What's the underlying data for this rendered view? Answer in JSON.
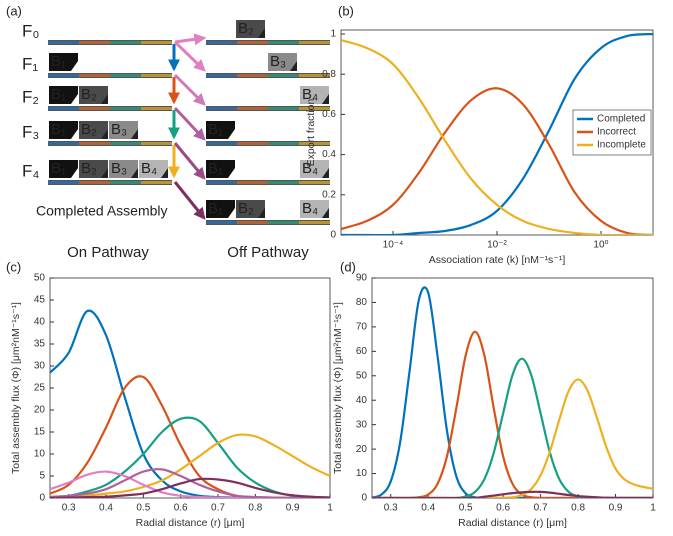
{
  "panel_labels": [
    "(a)",
    "(b)",
    "(c)",
    "(d)"
  ],
  "diagram": {
    "on_pathway": [
      {
        "label": "F₀",
        "blocks": []
      },
      {
        "label": "F₁",
        "blocks": [
          "B₁"
        ]
      },
      {
        "label": "F₂",
        "blocks": [
          "B₁",
          "B₂"
        ]
      },
      {
        "label": "F₃",
        "blocks": [
          "B₁",
          "B₂",
          "B₃"
        ]
      },
      {
        "label": "F₄",
        "blocks": [
          "B₁",
          "B₂",
          "B₃",
          "B₄"
        ]
      }
    ],
    "off_pathway": [
      [
        "B₂"
      ],
      [
        "B₃"
      ],
      [
        "B₄"
      ],
      [
        "B₁"
      ],
      [
        "B₁",
        "B₄"
      ],
      [
        "B₁",
        "B₂",
        "B₄"
      ]
    ],
    "completed_label": "Completed Assembly",
    "on_label": "On Pathway",
    "off_label": "Off Pathway"
  },
  "chart_data": [
    {
      "type": "line",
      "xscale": "log",
      "xlabel": "Association rate (k) [nM⁻¹s⁻¹]",
      "ylabel": "Export fraction",
      "x": [
        1e-05,
        3.16e-05,
        0.0001,
        0.000316,
        0.001,
        0.00316,
        0.01,
        0.0316,
        0.1,
        0.316,
        1,
        3.16,
        10
      ],
      "xlim": [
        1e-05,
        10
      ],
      "xticks": [
        {
          "value": 0.0001,
          "label": "10⁻⁴"
        },
        {
          "value": 0.01,
          "label": "10⁻²"
        },
        {
          "value": 1,
          "label": "10⁰"
        }
      ],
      "ylim": [
        0,
        1.02
      ],
      "yticks": [
        0,
        0.2,
        0.4,
        0.6,
        0.8,
        1
      ],
      "legend": "right",
      "series": [
        {
          "name": "Completed",
          "color": "#0072BD",
          "values": [
            0,
            0,
            0,
            0.01,
            0.02,
            0.05,
            0.12,
            0.28,
            0.52,
            0.78,
            0.93,
            0.99,
            1
          ]
        },
        {
          "name": "Incorrect",
          "color": "#D95319",
          "values": [
            0.03,
            0.07,
            0.15,
            0.31,
            0.51,
            0.67,
            0.73,
            0.65,
            0.45,
            0.21,
            0.07,
            0.01,
            0
          ]
        },
        {
          "name": "Incomplete",
          "color": "#EDB120",
          "values": [
            0.97,
            0.93,
            0.85,
            0.68,
            0.47,
            0.28,
            0.15,
            0.07,
            0.03,
            0.01,
            0,
            0,
            0
          ]
        }
      ]
    },
    {
      "type": "line",
      "xlabel": "Radial distance (r) [μm]",
      "ylabel": "Total assembly flux (Φ) [μm²nM⁻¹s⁻¹]",
      "x": [
        0.25,
        0.3,
        0.35,
        0.4,
        0.45,
        0.5,
        0.55,
        0.6,
        0.65,
        0.7,
        0.75,
        0.8,
        0.85,
        0.9,
        0.95,
        1
      ],
      "xlim": [
        0.25,
        1
      ],
      "xticks": [
        0.3,
        0.4,
        0.5,
        0.6,
        0.7,
        0.8,
        0.9,
        1
      ],
      "ylim": [
        0,
        50
      ],
      "yticks": [
        0,
        5,
        10,
        15,
        20,
        25,
        30,
        35,
        40,
        45,
        50
      ],
      "series": [
        {
          "color": "#0072BD",
          "values": [
            28.5,
            33,
            42.5,
            37,
            23,
            10,
            4,
            1.5,
            0.5,
            0.2,
            0.1,
            0,
            0,
            0,
            0,
            0
          ]
        },
        {
          "color": "#D95319",
          "values": [
            1,
            3,
            8,
            16,
            25,
            27.5,
            21,
            12,
            5,
            2,
            0.5,
            0.2,
            0.1,
            0,
            0,
            0
          ]
        },
        {
          "color": "#14A085",
          "values": [
            0.2,
            0.5,
            1.5,
            3,
            6,
            10,
            15,
            18,
            17.5,
            12.5,
            7,
            3.5,
            1.5,
            0.5,
            0.2,
            0.1
          ]
        },
        {
          "color": "#EDB120",
          "values": [
            0.3,
            0.4,
            0.6,
            1,
            1.5,
            2.5,
            4,
            6.5,
            9.5,
            12.5,
            14.3,
            14,
            12,
            9.5,
            7,
            5
          ]
        },
        {
          "color": "#E27FC2",
          "values": [
            2,
            3.5,
            5.3,
            6,
            5,
            3,
            1.3,
            0.5,
            0.2,
            0.1,
            0,
            0,
            0,
            0,
            0,
            0
          ]
        },
        {
          "color": "#B0609E",
          "values": [
            0.2,
            0.5,
            1,
            2,
            4,
            6,
            6.5,
            5,
            3,
            1.5,
            0.5,
            0.2,
            0.1,
            0,
            0,
            0
          ]
        },
        {
          "color": "#7E2F5E",
          "values": [
            0,
            0.1,
            0.2,
            0.3,
            0.6,
            1,
            2,
            3.3,
            4.3,
            4.2,
            3.5,
            2.3,
            1.3,
            0.6,
            0.3,
            0.1
          ]
        }
      ]
    },
    {
      "type": "line",
      "xlabel": "Radial distance (r) [μm]",
      "ylabel": "Total assembly flux (Φ) [μm²nM⁻¹s⁻¹]",
      "x": [
        0.25,
        0.275,
        0.3,
        0.325,
        0.35,
        0.375,
        0.4,
        0.425,
        0.45,
        0.475,
        0.5,
        0.525,
        0.55,
        0.575,
        0.6,
        0.625,
        0.65,
        0.675,
        0.7,
        0.725,
        0.75,
        0.775,
        0.8,
        0.825,
        0.85,
        0.875,
        0.9,
        0.925,
        0.95,
        0.975,
        1
      ],
      "xlim": [
        0.25,
        1
      ],
      "xticks": [
        0.3,
        0.4,
        0.5,
        0.6,
        0.7,
        0.8,
        0.9,
        1
      ],
      "ylim": [
        0,
        90
      ],
      "yticks": [
        0,
        10,
        20,
        30,
        40,
        50,
        60,
        70,
        80,
        90
      ],
      "series": [
        {
          "color": "#0072BD",
          "values": [
            0.2,
            1.4,
            6.8,
            22.7,
            51.6,
            81,
            84,
            58,
            27.6,
            8.9,
            1.9,
            0.3,
            0,
            0,
            0,
            0,
            0,
            0,
            0,
            0,
            0,
            0,
            0,
            0,
            0,
            0,
            0,
            0,
            0,
            0,
            0
          ]
        },
        {
          "color": "#D95319",
          "values": [
            0,
            0,
            0,
            0,
            0,
            0.3,
            1.4,
            5.8,
            17,
            36.7,
            58.3,
            68,
            58.3,
            36.7,
            17,
            5.8,
            1.4,
            0.3,
            0,
            0,
            0,
            0,
            0,
            0,
            0,
            0,
            0,
            0,
            0,
            0,
            0
          ]
        },
        {
          "color": "#14A085",
          "values": [
            0,
            0,
            0,
            0,
            0,
            0,
            0,
            0,
            0,
            0,
            0.6,
            2.5,
            7.7,
            18.5,
            34.6,
            50.3,
            57,
            50.3,
            34.6,
            18.5,
            7.7,
            2.5,
            0.6,
            0.1,
            0,
            0,
            0,
            0,
            0,
            0,
            0
          ]
        },
        {
          "color": "#EDB120",
          "values": [
            0,
            0,
            0,
            0,
            0,
            0,
            0,
            0,
            0,
            0,
            0,
            0,
            0,
            0,
            0.1,
            0.3,
            1.2,
            3.7,
            9.3,
            19.1,
            32.1,
            43.8,
            48.5,
            44,
            33,
            21,
            12,
            7.5,
            5.5,
            4.5,
            3.8
          ]
        },
        {
          "color": "#7E2F5E",
          "values": [
            0,
            0,
            0,
            0,
            0,
            0,
            0,
            0,
            0,
            0,
            0,
            0,
            0.5,
            1,
            1.5,
            2,
            2.3,
            2.5,
            2.5,
            2.2,
            1.7,
            1.2,
            0.8,
            0.5,
            0.3,
            0.1,
            0,
            0,
            0,
            0,
            0
          ]
        }
      ]
    }
  ]
}
